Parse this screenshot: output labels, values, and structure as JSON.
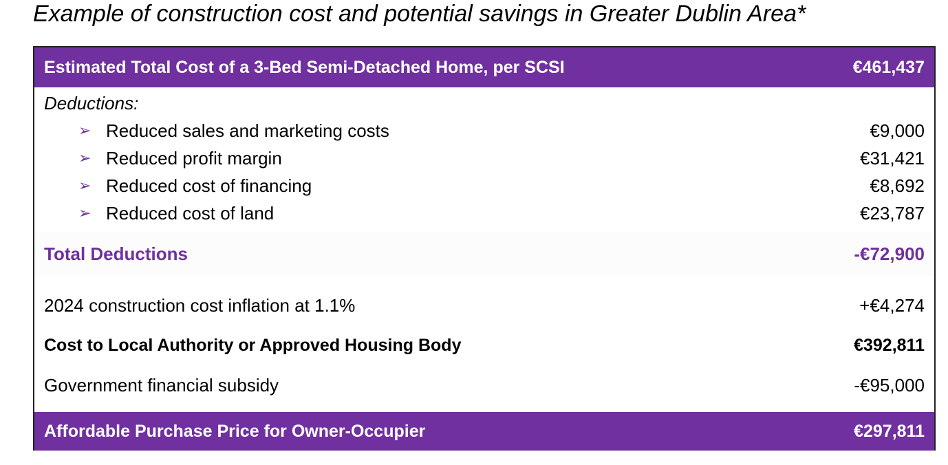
{
  "title": "Example of construction cost and potential savings in Greater Dublin Area*",
  "table": {
    "header": {
      "label": "Estimated Total Cost of a 3-Bed Semi-Detached Home, per SCSI",
      "value": "€461,437"
    },
    "deductions_label": "Deductions:",
    "deductions": [
      {
        "label": "Reduced sales and marketing costs",
        "value": "€9,000"
      },
      {
        "label": "Reduced profit margin",
        "value": "€31,421"
      },
      {
        "label": "Reduced cost of financing",
        "value": "€8,692"
      },
      {
        "label": "Reduced cost of land",
        "value": "€23,787"
      }
    ],
    "total_deductions": {
      "label": "Total Deductions",
      "value": "-€72,900"
    },
    "inflation": {
      "label": "2024 construction cost inflation at 1.1%",
      "value": "+€4,274"
    },
    "cost_to_la": {
      "label": "Cost to Local Authority or Approved Housing Body",
      "value": "€392,811"
    },
    "subsidy": {
      "label": "Government financial subsidy",
      "value": "-€95,000"
    },
    "footer": {
      "label": "Affordable Purchase Price for Owner-Occupier",
      "value": "€297,811"
    }
  },
  "colors": {
    "accent": "#7030a0",
    "bullet_icon": "arrowhead-bullet-icon"
  }
}
